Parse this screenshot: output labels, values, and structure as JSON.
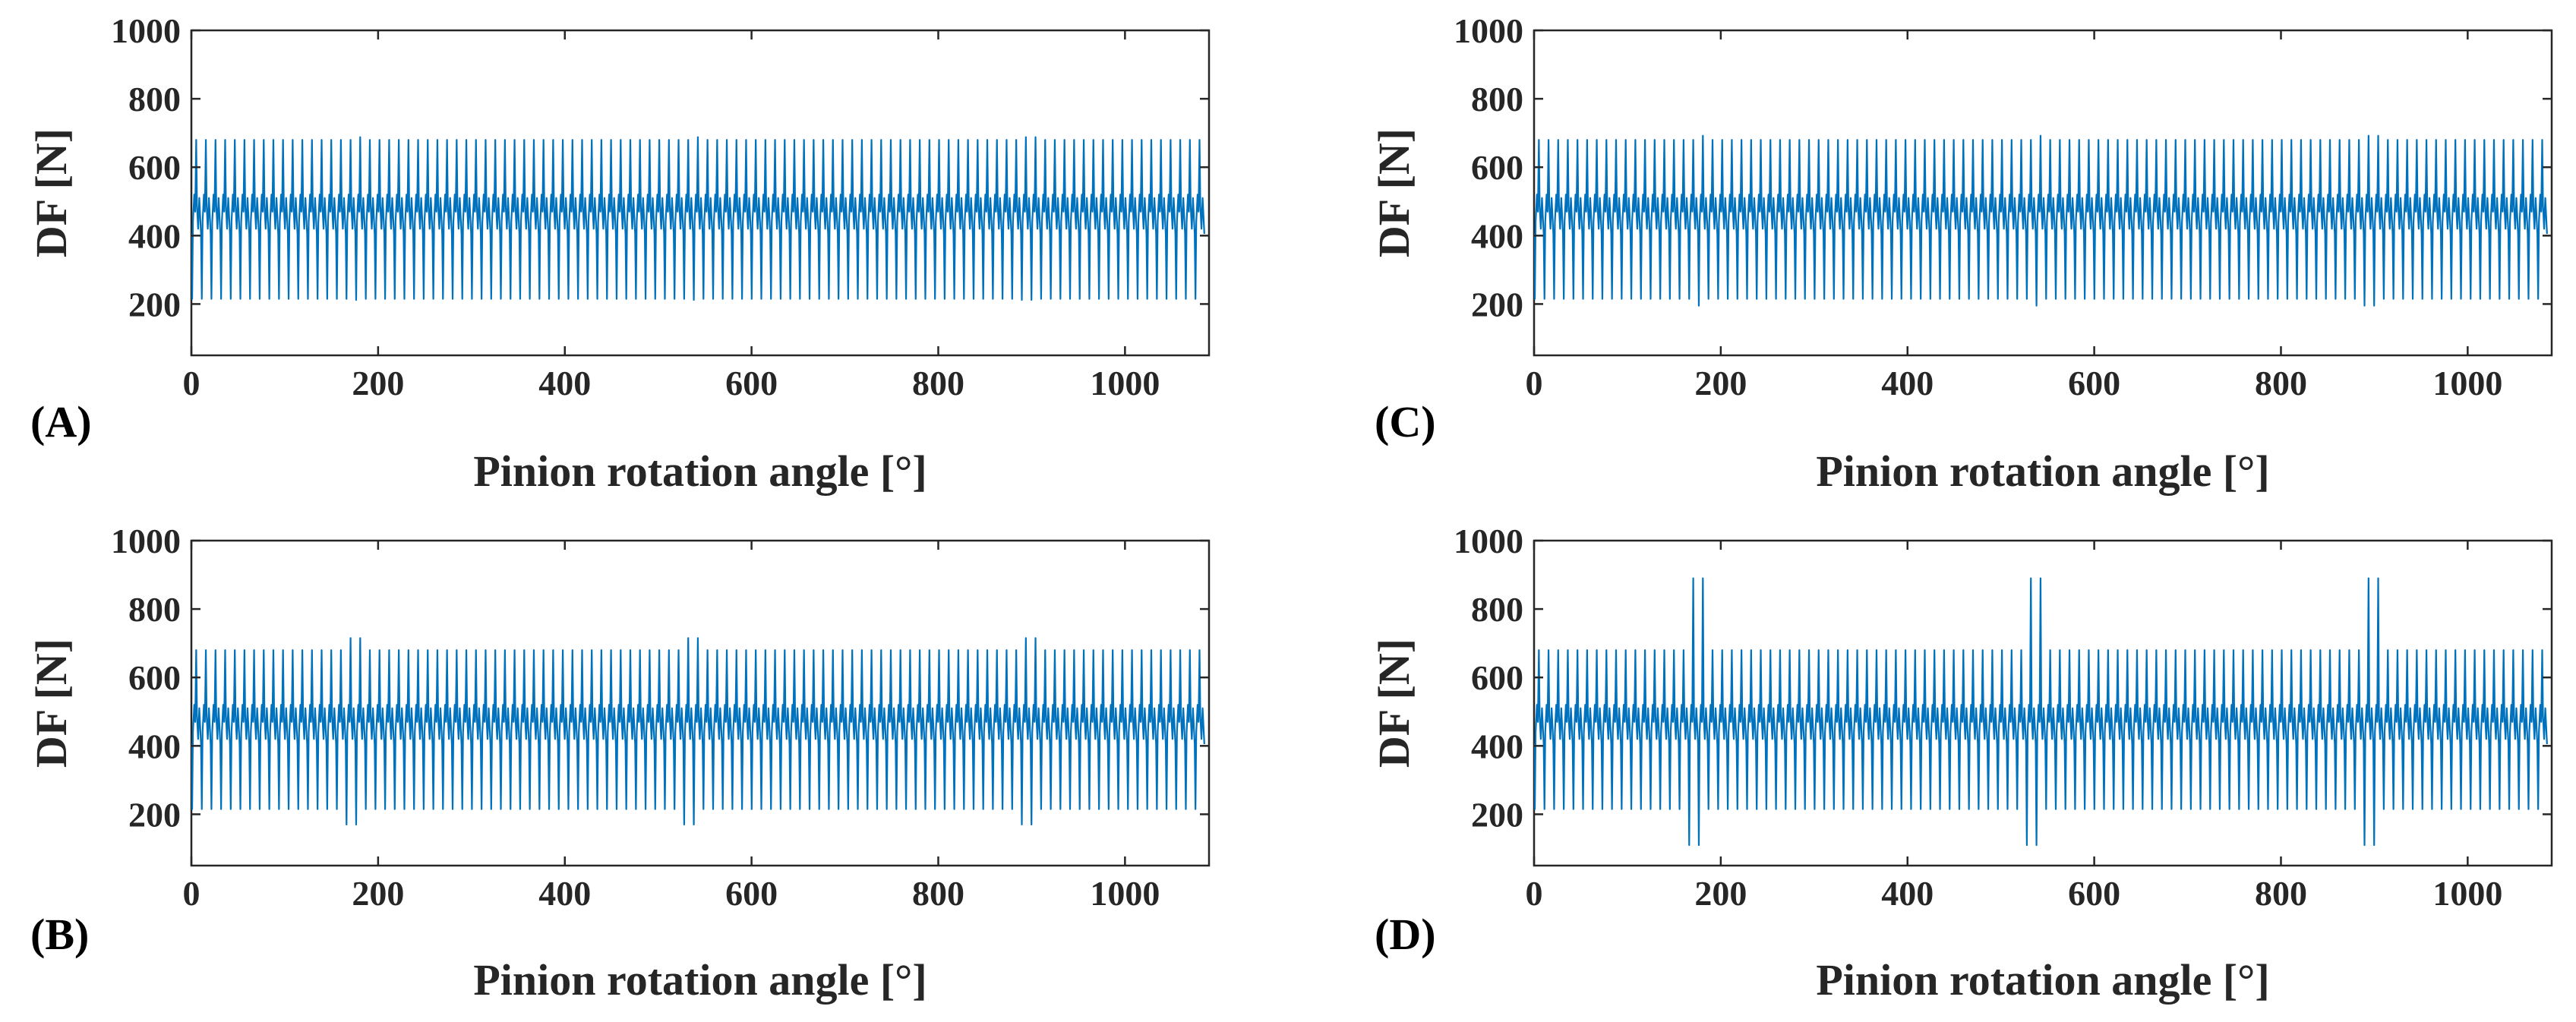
{
  "colors": {
    "line": "#0072BD",
    "axes": "#262626",
    "background": "#ffffff"
  },
  "chart_data": [
    {
      "type": "line",
      "panel_label": "(A)",
      "xlabel": "Pinion rotation angle [°]",
      "ylabel": "DF [N]",
      "xlim": [
        0,
        1090
      ],
      "ylim": [
        50,
        1000
      ],
      "xticks": [
        "0",
        "200",
        "400",
        "600",
        "800",
        "1000"
      ],
      "yticks": [
        "200",
        "400",
        "600",
        "800",
        "1000"
      ],
      "grid": false,
      "series": [
        {
          "x_range": [
            0,
            1085
          ],
          "mesh_cycles": 105,
          "max": 680,
          "min": 215,
          "mean": 460,
          "spikes": [
            {
              "x": 180,
              "max": 688,
              "min": 212
            },
            {
              "x": 540,
              "max": 688,
              "min": 212
            },
            {
              "x": 900,
              "max": 688,
              "min": 212
            }
          ]
        }
      ]
    },
    {
      "type": "line",
      "panel_label": "(B)",
      "xlabel": "Pinion rotation angle [°]",
      "ylabel": "DF [N]",
      "xlim": [
        0,
        1090
      ],
      "ylim": [
        50,
        1000
      ],
      "xticks": [
        "0",
        "200",
        "400",
        "600",
        "800",
        "1000"
      ],
      "yticks": [
        "200",
        "400",
        "600",
        "800",
        "1000"
      ],
      "grid": false,
      "series": [
        {
          "x_range": [
            0,
            1085
          ],
          "mesh_cycles": 105,
          "max": 680,
          "min": 215,
          "mean": 460,
          "spikes": [
            {
              "x": 178,
              "max": 715,
              "min": 170
            },
            {
              "x": 538,
              "max": 715,
              "min": 170
            },
            {
              "x": 900,
              "max": 715,
              "min": 170
            }
          ]
        }
      ]
    },
    {
      "type": "line",
      "panel_label": "(C)",
      "xlabel": "Pinion rotation angle [°]",
      "ylabel": "DF [N]",
      "xlim": [
        0,
        1090
      ],
      "ylim": [
        50,
        1000
      ],
      "xticks": [
        "0",
        "200",
        "400",
        "600",
        "800",
        "1000"
      ],
      "yticks": [
        "200",
        "400",
        "600",
        "800",
        "1000"
      ],
      "grid": false,
      "series": [
        {
          "x_range": [
            0,
            1085
          ],
          "mesh_cycles": 105,
          "max": 680,
          "min": 215,
          "mean": 460,
          "spikes": [
            {
              "x": 180,
              "max": 692,
              "min": 195
            },
            {
              "x": 540,
              "max": 692,
              "min": 195
            },
            {
              "x": 900,
              "max": 692,
              "min": 195
            }
          ]
        }
      ]
    },
    {
      "type": "line",
      "panel_label": "(D)",
      "xlabel": "Pinion rotation angle [°]",
      "ylabel": "DF [N]",
      "xlim": [
        0,
        1090
      ],
      "ylim": [
        50,
        1000
      ],
      "xticks": [
        "0",
        "200",
        "400",
        "600",
        "800",
        "1000"
      ],
      "yticks": [
        "200",
        "400",
        "600",
        "800",
        "1000"
      ],
      "grid": false,
      "series": [
        {
          "x_range": [
            0,
            1085
          ],
          "mesh_cycles": 105,
          "max": 680,
          "min": 215,
          "mean": 460,
          "spikes": [
            {
              "x": 178,
              "max": 890,
              "min": 110
            },
            {
              "x": 538,
              "max": 890,
              "min": 110
            },
            {
              "x": 900,
              "max": 890,
              "min": 110
            }
          ]
        }
      ]
    }
  ]
}
